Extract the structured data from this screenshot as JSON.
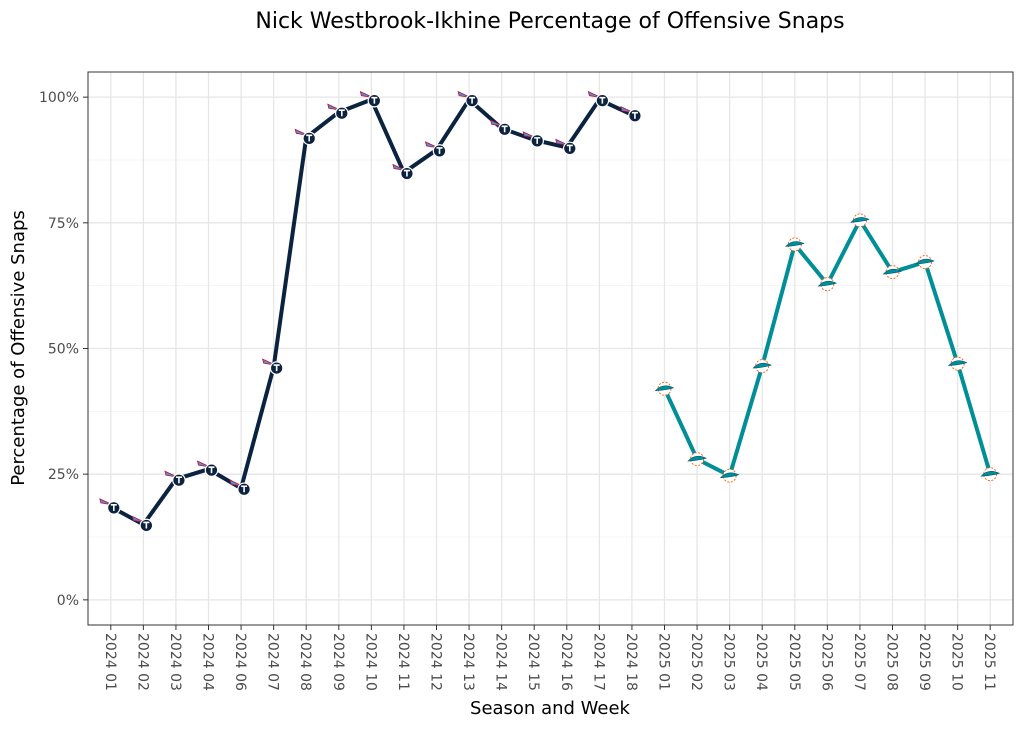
{
  "chart_data": {
    "type": "line",
    "title": "Nick Westbrook-Ikhine Percentage of Offensive Snaps",
    "xlabel": "Season and Week",
    "ylabel": "Percentage of Offensive Snaps",
    "ylim": [
      -5,
      105
    ],
    "yticks": [
      0,
      25,
      50,
      75,
      100
    ],
    "ytick_labels": [
      "0%",
      "25%",
      "50%",
      "75%",
      "100%"
    ],
    "categories": [
      "2024 01",
      "2024 02",
      "2024 03",
      "2024 04",
      "2024 06",
      "2024 07",
      "2024 08",
      "2024 09",
      "2024 10",
      "2024 11",
      "2024 12",
      "2024 13",
      "2024 14",
      "2024 15",
      "2024 16",
      "2024 17",
      "2024 18",
      "2025 01",
      "2025 02",
      "2025 03",
      "2025 04",
      "2025 05",
      "2025 06",
      "2025 07",
      "2025 08",
      "2025 09",
      "2025 10",
      "2025 11"
    ],
    "grid": true,
    "series": [
      {
        "name": "Tennessee Titans",
        "color": "#0c2340",
        "marker": "titans-logo",
        "x": [
          "2024 01",
          "2024 02",
          "2024 03",
          "2024 04",
          "2024 06",
          "2024 07",
          "2024 08",
          "2024 09",
          "2024 10",
          "2024 11",
          "2024 12",
          "2024 13",
          "2024 14",
          "2024 15",
          "2024 16",
          "2024 17",
          "2024 18"
        ],
        "values": [
          18.5,
          15,
          24,
          26,
          22.2,
          46.3,
          92,
          97,
          99.5,
          85,
          89.5,
          99.5,
          93.8,
          91.5,
          90,
          99.5,
          96.5
        ]
      },
      {
        "name": "Miami Dolphins",
        "color": "#008e97",
        "marker": "dolphins-logo",
        "x": [
          "2025 01",
          "2025 02",
          "2025 03",
          "2025 04",
          "2025 05",
          "2025 06",
          "2025 07",
          "2025 08",
          "2025 09",
          "2025 10",
          "2025 11"
        ],
        "values": [
          42,
          28,
          24.7,
          46.5,
          70.7,
          62.8,
          75.5,
          65.2,
          67.2,
          47,
          25
        ]
      }
    ]
  }
}
